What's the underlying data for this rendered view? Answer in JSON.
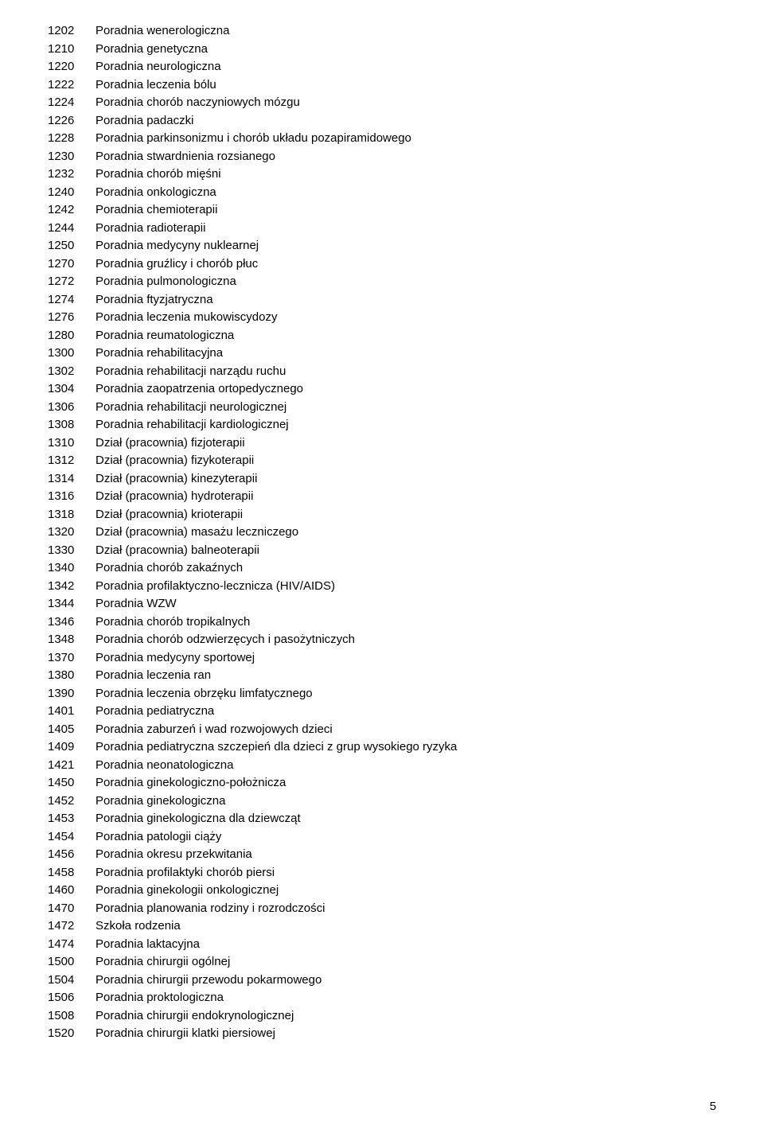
{
  "colors": {
    "text": "#000000",
    "background": "#ffffff"
  },
  "typography": {
    "font_family": "Verdana, Geneva, sans-serif",
    "font_size_pt": 11,
    "line_height": 1.5
  },
  "page_number": "5",
  "rows": [
    {
      "code": "1202",
      "label": "Poradnia wenerologiczna"
    },
    {
      "code": "1210",
      "label": "Poradnia genetyczna"
    },
    {
      "code": "1220",
      "label": "Poradnia neurologiczna"
    },
    {
      "code": "1222",
      "label": "Poradnia leczenia bólu"
    },
    {
      "code": "1224",
      "label": "Poradnia chorób naczyniowych mózgu"
    },
    {
      "code": "1226",
      "label": "Poradnia padaczki"
    },
    {
      "code": "1228",
      "label": "Poradnia parkinsonizmu i chorób układu pozapiramidowego"
    },
    {
      "code": "1230",
      "label": "Poradnia stwardnienia rozsianego"
    },
    {
      "code": "1232",
      "label": "Poradnia chorób mięśni"
    },
    {
      "code": "1240",
      "label": "Poradnia onkologiczna"
    },
    {
      "code": "1242",
      "label": "Poradnia chemioterapii"
    },
    {
      "code": "1244",
      "label": "Poradnia radioterapii"
    },
    {
      "code": "1250",
      "label": "Poradnia medycyny nuklearnej"
    },
    {
      "code": "1270",
      "label": "Poradnia gruźlicy i chorób płuc"
    },
    {
      "code": "1272",
      "label": "Poradnia pulmonologiczna"
    },
    {
      "code": "1274",
      "label": "Poradnia ftyzjatryczna"
    },
    {
      "code": "1276",
      "label": "Poradnia leczenia mukowiscydozy"
    },
    {
      "code": "1280",
      "label": "Poradnia reumatologiczna"
    },
    {
      "code": "1300",
      "label": "Poradnia rehabilitacyjna"
    },
    {
      "code": "1302",
      "label": "Poradnia rehabilitacji narządu ruchu"
    },
    {
      "code": "1304",
      "label": "Poradnia zaopatrzenia ortopedycznego"
    },
    {
      "code": "1306",
      "label": "Poradnia rehabilitacji neurologicznej"
    },
    {
      "code": "1308",
      "label": "Poradnia rehabilitacji kardiologicznej"
    },
    {
      "code": "1310",
      "label": "Dział (pracownia) fizjoterapii"
    },
    {
      "code": "1312",
      "label": "Dział (pracownia) fizykoterapii"
    },
    {
      "code": "1314",
      "label": "Dział (pracownia) kinezyterapii"
    },
    {
      "code": "1316",
      "label": "Dział (pracownia) hydroterapii"
    },
    {
      "code": "1318",
      "label": "Dział (pracownia) krioterapii"
    },
    {
      "code": "1320",
      "label": "Dział (pracownia) masażu leczniczego"
    },
    {
      "code": "1330",
      "label": "Dział (pracownia) balneoterapii"
    },
    {
      "code": "1340",
      "label": "Poradnia chorób zakaźnych"
    },
    {
      "code": "1342",
      "label": "Poradnia profilaktyczno-lecznicza (HIV/AIDS)"
    },
    {
      "code": "1344",
      "label": "Poradnia WZW"
    },
    {
      "code": "1346",
      "label": "Poradnia chorób tropikalnych"
    },
    {
      "code": "1348",
      "label": "Poradnia chorób odzwierzęcych i pasożytniczych"
    },
    {
      "code": "1370",
      "label": "Poradnia medycyny sportowej"
    },
    {
      "code": "1380",
      "label": "Poradnia leczenia ran"
    },
    {
      "code": "1390",
      "label": "Poradnia leczenia obrzęku limfatycznego"
    },
    {
      "code": "1401",
      "label": "Poradnia pediatryczna"
    },
    {
      "code": "1405",
      "label": "Poradnia zaburzeń i wad rozwojowych dzieci"
    },
    {
      "code": "1409",
      "label": "Poradnia pediatryczna szczepień dla dzieci z grup wysokiego ryzyka"
    },
    {
      "code": "1421",
      "label": "Poradnia neonatologiczna"
    },
    {
      "code": "1450",
      "label": "Poradnia ginekologiczno-położnicza"
    },
    {
      "code": "1452",
      "label": "Poradnia ginekologiczna"
    },
    {
      "code": "1453",
      "label": "Poradnia ginekologiczna dla dziewcząt"
    },
    {
      "code": "1454",
      "label": "Poradnia patologii ciąży"
    },
    {
      "code": "1456",
      "label": "Poradnia okresu przekwitania"
    },
    {
      "code": "1458",
      "label": "Poradnia profilaktyki chorób piersi"
    },
    {
      "code": "1460",
      "label": "Poradnia ginekologii onkologicznej"
    },
    {
      "code": "1470",
      "label": "Poradnia planowania rodziny i rozrodczości"
    },
    {
      "code": "1472",
      "label": "Szkoła rodzenia"
    },
    {
      "code": "1474",
      "label": "Poradnia laktacyjna"
    },
    {
      "code": "1500",
      "label": "Poradnia chirurgii ogólnej"
    },
    {
      "code": "1504",
      "label": "Poradnia chirurgii przewodu pokarmowego"
    },
    {
      "code": "1506",
      "label": "Poradnia proktologiczna"
    },
    {
      "code": "1508",
      "label": "Poradnia chirurgii endokrynologicznej"
    },
    {
      "code": "1520",
      "label": "Poradnia chirurgii klatki piersiowej"
    }
  ]
}
